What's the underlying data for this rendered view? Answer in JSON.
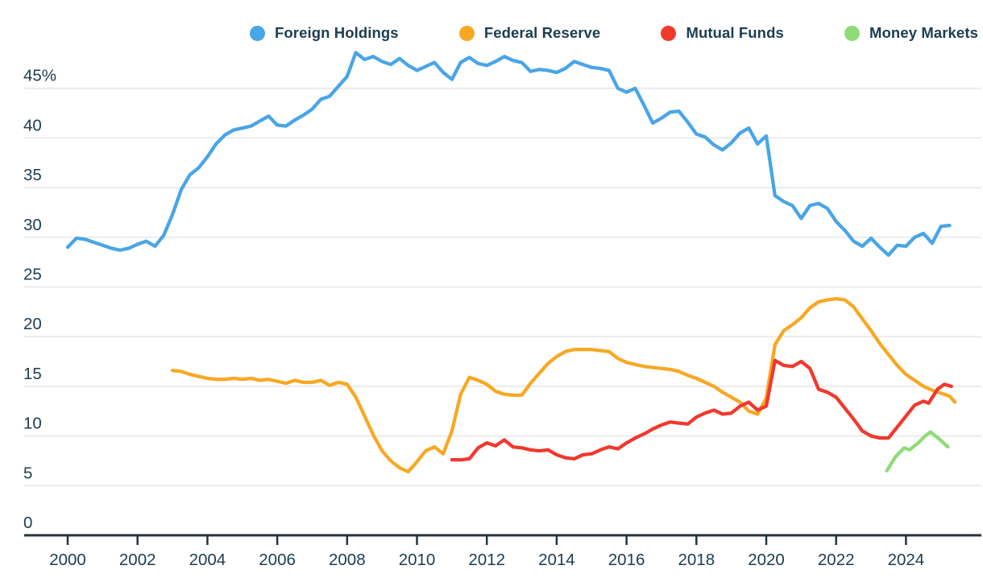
{
  "legend": {
    "items": [
      {
        "label": "Foreign Holdings",
        "color": "#49a5e6"
      },
      {
        "label": "Federal Reserve",
        "color": "#f7a823"
      },
      {
        "label": "Mutual Funds",
        "color": "#f0392e"
      },
      {
        "label": "Money Markets",
        "color": "#8fdb78"
      }
    ]
  },
  "chart_data": {
    "type": "line",
    "title": "",
    "unit": "percent share",
    "grid": "horizontal",
    "legend_position": "top",
    "x_axis": {
      "tick_years": [
        2000,
        2002,
        2004,
        2006,
        2008,
        2010,
        2012,
        2014,
        2016,
        2018,
        2020,
        2022,
        2024
      ],
      "range": [
        1998.8,
        2026.2
      ]
    },
    "y_axis": {
      "ticks": [
        {
          "value": 0,
          "label": "0"
        },
        {
          "value": 5,
          "label": "5"
        },
        {
          "value": 10,
          "label": "10"
        },
        {
          "value": 15,
          "label": "15"
        },
        {
          "value": 20,
          "label": "20"
        },
        {
          "value": 25,
          "label": "25"
        },
        {
          "value": 30,
          "label": "30"
        },
        {
          "value": 35,
          "label": "35"
        },
        {
          "value": 40,
          "label": "40"
        },
        {
          "value": 45,
          "label": "45%"
        }
      ],
      "range": [
        0,
        50
      ]
    },
    "series": [
      {
        "name": "Foreign Holdings",
        "color": "#49a5e6",
        "points": [
          [
            2000.0,
            29.0
          ],
          [
            2000.25,
            29.9
          ],
          [
            2000.5,
            29.8
          ],
          [
            2000.75,
            29.5
          ],
          [
            2001.0,
            29.2
          ],
          [
            2001.25,
            28.9
          ],
          [
            2001.5,
            28.7
          ],
          [
            2001.75,
            28.9
          ],
          [
            2002.0,
            29.3
          ],
          [
            2002.25,
            29.6
          ],
          [
            2002.5,
            29.1
          ],
          [
            2002.75,
            30.2
          ],
          [
            2003.0,
            32.3
          ],
          [
            2003.25,
            34.8
          ],
          [
            2003.5,
            36.3
          ],
          [
            2003.75,
            37.0
          ],
          [
            2004.0,
            38.1
          ],
          [
            2004.25,
            39.4
          ],
          [
            2004.5,
            40.3
          ],
          [
            2004.75,
            40.8
          ],
          [
            2005.0,
            41.0
          ],
          [
            2005.25,
            41.2
          ],
          [
            2005.5,
            41.7
          ],
          [
            2005.75,
            42.2
          ],
          [
            2006.0,
            41.3
          ],
          [
            2006.25,
            41.2
          ],
          [
            2006.5,
            41.8
          ],
          [
            2006.75,
            42.3
          ],
          [
            2007.0,
            42.9
          ],
          [
            2007.25,
            43.9
          ],
          [
            2007.5,
            44.2
          ],
          [
            2007.75,
            45.2
          ],
          [
            2008.0,
            46.2
          ],
          [
            2008.25,
            48.6
          ],
          [
            2008.5,
            47.9
          ],
          [
            2008.75,
            48.2
          ],
          [
            2009.0,
            47.7
          ],
          [
            2009.25,
            47.4
          ],
          [
            2009.5,
            48.0
          ],
          [
            2009.75,
            47.3
          ],
          [
            2010.0,
            46.8
          ],
          [
            2010.25,
            47.2
          ],
          [
            2010.5,
            47.6
          ],
          [
            2010.75,
            46.6
          ],
          [
            2011.0,
            45.9
          ],
          [
            2011.25,
            47.6
          ],
          [
            2011.5,
            48.1
          ],
          [
            2011.75,
            47.5
          ],
          [
            2012.0,
            47.3
          ],
          [
            2012.25,
            47.7
          ],
          [
            2012.5,
            48.2
          ],
          [
            2012.75,
            47.8
          ],
          [
            2013.0,
            47.6
          ],
          [
            2013.25,
            46.7
          ],
          [
            2013.5,
            46.9
          ],
          [
            2013.75,
            46.8
          ],
          [
            2014.0,
            46.6
          ],
          [
            2014.25,
            47.0
          ],
          [
            2014.5,
            47.7
          ],
          [
            2014.75,
            47.4
          ],
          [
            2015.0,
            47.1
          ],
          [
            2015.25,
            47.0
          ],
          [
            2015.5,
            46.8
          ],
          [
            2015.75,
            45.0
          ],
          [
            2016.0,
            44.6
          ],
          [
            2016.25,
            45.0
          ],
          [
            2016.5,
            43.3
          ],
          [
            2016.75,
            41.5
          ],
          [
            2017.0,
            42.0
          ],
          [
            2017.25,
            42.6
          ],
          [
            2017.5,
            42.7
          ],
          [
            2017.75,
            41.6
          ],
          [
            2018.0,
            40.4
          ],
          [
            2018.25,
            40.1
          ],
          [
            2018.5,
            39.3
          ],
          [
            2018.75,
            38.8
          ],
          [
            2019.0,
            39.5
          ],
          [
            2019.25,
            40.5
          ],
          [
            2019.5,
            41.0
          ],
          [
            2019.75,
            39.4
          ],
          [
            2020.0,
            40.2
          ],
          [
            2020.25,
            34.2
          ],
          [
            2020.5,
            33.6
          ],
          [
            2020.75,
            33.2
          ],
          [
            2021.0,
            31.9
          ],
          [
            2021.25,
            33.2
          ],
          [
            2021.5,
            33.4
          ],
          [
            2021.75,
            32.9
          ],
          [
            2022.0,
            31.6
          ],
          [
            2022.25,
            30.7
          ],
          [
            2022.5,
            29.6
          ],
          [
            2022.75,
            29.1
          ],
          [
            2023.0,
            29.9
          ],
          [
            2023.25,
            29.0
          ],
          [
            2023.5,
            28.2
          ],
          [
            2023.75,
            29.2
          ],
          [
            2024.0,
            29.1
          ],
          [
            2024.25,
            30.0
          ],
          [
            2024.5,
            30.4
          ],
          [
            2024.75,
            29.4
          ],
          [
            2025.0,
            31.1
          ],
          [
            2025.25,
            31.2
          ]
        ]
      },
      {
        "name": "Federal Reserve",
        "color": "#f7a823",
        "points": [
          [
            2003.0,
            16.6
          ],
          [
            2003.25,
            16.5
          ],
          [
            2003.5,
            16.2
          ],
          [
            2003.75,
            16.0
          ],
          [
            2004.0,
            15.8
          ],
          [
            2004.25,
            15.7
          ],
          [
            2004.5,
            15.7
          ],
          [
            2004.75,
            15.8
          ],
          [
            2005.0,
            15.7
          ],
          [
            2005.25,
            15.8
          ],
          [
            2005.5,
            15.6
          ],
          [
            2005.75,
            15.7
          ],
          [
            2006.0,
            15.5
          ],
          [
            2006.25,
            15.3
          ],
          [
            2006.5,
            15.6
          ],
          [
            2006.75,
            15.4
          ],
          [
            2007.0,
            15.4
          ],
          [
            2007.25,
            15.6
          ],
          [
            2007.5,
            15.1
          ],
          [
            2007.75,
            15.4
          ],
          [
            2008.0,
            15.2
          ],
          [
            2008.25,
            13.9
          ],
          [
            2008.5,
            12.0
          ],
          [
            2008.75,
            10.1
          ],
          [
            2009.0,
            8.5
          ],
          [
            2009.25,
            7.5
          ],
          [
            2009.5,
            6.8
          ],
          [
            2009.75,
            6.4
          ],
          [
            2010.0,
            7.4
          ],
          [
            2010.25,
            8.5
          ],
          [
            2010.5,
            8.9
          ],
          [
            2010.75,
            8.2
          ],
          [
            2011.0,
            10.5
          ],
          [
            2011.25,
            14.2
          ],
          [
            2011.5,
            15.9
          ],
          [
            2011.75,
            15.6
          ],
          [
            2012.0,
            15.2
          ],
          [
            2012.25,
            14.5
          ],
          [
            2012.5,
            14.2
          ],
          [
            2012.75,
            14.1
          ],
          [
            2013.0,
            14.1
          ],
          [
            2013.25,
            15.3
          ],
          [
            2013.5,
            16.3
          ],
          [
            2013.75,
            17.3
          ],
          [
            2014.0,
            18.0
          ],
          [
            2014.25,
            18.5
          ],
          [
            2014.5,
            18.7
          ],
          [
            2014.75,
            18.7
          ],
          [
            2015.0,
            18.7
          ],
          [
            2015.25,
            18.6
          ],
          [
            2015.5,
            18.5
          ],
          [
            2015.75,
            17.8
          ],
          [
            2016.0,
            17.4
          ],
          [
            2016.25,
            17.2
          ],
          [
            2016.5,
            17.0
          ],
          [
            2016.75,
            16.9
          ],
          [
            2017.0,
            16.8
          ],
          [
            2017.25,
            16.7
          ],
          [
            2017.5,
            16.5
          ],
          [
            2017.75,
            16.1
          ],
          [
            2018.0,
            15.8
          ],
          [
            2018.25,
            15.4
          ],
          [
            2018.5,
            15.0
          ],
          [
            2018.75,
            14.4
          ],
          [
            2019.0,
            13.9
          ],
          [
            2019.25,
            13.4
          ],
          [
            2019.5,
            12.5
          ],
          [
            2019.75,
            12.2
          ],
          [
            2020.0,
            13.8
          ],
          [
            2020.25,
            19.2
          ],
          [
            2020.5,
            20.6
          ],
          [
            2020.75,
            21.2
          ],
          [
            2021.0,
            21.9
          ],
          [
            2021.25,
            22.9
          ],
          [
            2021.5,
            23.5
          ],
          [
            2021.75,
            23.7
          ],
          [
            2022.0,
            23.8
          ],
          [
            2022.25,
            23.7
          ],
          [
            2022.5,
            23.0
          ],
          [
            2022.75,
            21.8
          ],
          [
            2023.0,
            20.6
          ],
          [
            2023.25,
            19.3
          ],
          [
            2023.5,
            18.2
          ],
          [
            2023.75,
            17.1
          ],
          [
            2024.0,
            16.2
          ],
          [
            2024.25,
            15.6
          ],
          [
            2024.5,
            15.0
          ],
          [
            2024.75,
            14.6
          ],
          [
            2025.0,
            14.3
          ],
          [
            2025.25,
            14.0
          ],
          [
            2025.4,
            13.4
          ]
        ]
      },
      {
        "name": "Mutual Funds",
        "color": "#f0392e",
        "points": [
          [
            2011.0,
            7.6
          ],
          [
            2011.25,
            7.6
          ],
          [
            2011.5,
            7.7
          ],
          [
            2011.75,
            8.8
          ],
          [
            2012.0,
            9.3
          ],
          [
            2012.25,
            9.0
          ],
          [
            2012.5,
            9.6
          ],
          [
            2012.75,
            8.9
          ],
          [
            2013.0,
            8.8
          ],
          [
            2013.25,
            8.6
          ],
          [
            2013.5,
            8.5
          ],
          [
            2013.75,
            8.6
          ],
          [
            2014.0,
            8.1
          ],
          [
            2014.25,
            7.8
          ],
          [
            2014.5,
            7.7
          ],
          [
            2014.75,
            8.1
          ],
          [
            2015.0,
            8.2
          ],
          [
            2015.25,
            8.6
          ],
          [
            2015.5,
            8.9
          ],
          [
            2015.75,
            8.7
          ],
          [
            2016.0,
            9.3
          ],
          [
            2016.25,
            9.8
          ],
          [
            2016.5,
            10.2
          ],
          [
            2016.75,
            10.7
          ],
          [
            2017.0,
            11.1
          ],
          [
            2017.25,
            11.4
          ],
          [
            2017.5,
            11.3
          ],
          [
            2017.75,
            11.2
          ],
          [
            2018.0,
            11.9
          ],
          [
            2018.25,
            12.3
          ],
          [
            2018.5,
            12.6
          ],
          [
            2018.75,
            12.2
          ],
          [
            2019.0,
            12.3
          ],
          [
            2019.25,
            13.0
          ],
          [
            2019.5,
            13.4
          ],
          [
            2019.75,
            12.6
          ],
          [
            2020.0,
            13.0
          ],
          [
            2020.25,
            17.6
          ],
          [
            2020.5,
            17.1
          ],
          [
            2020.75,
            17.0
          ],
          [
            2021.0,
            17.5
          ],
          [
            2021.25,
            16.8
          ],
          [
            2021.5,
            14.7
          ],
          [
            2021.75,
            14.4
          ],
          [
            2022.0,
            13.9
          ],
          [
            2022.25,
            12.8
          ],
          [
            2022.5,
            11.7
          ],
          [
            2022.75,
            10.5
          ],
          [
            2023.0,
            10.0
          ],
          [
            2023.25,
            9.8
          ],
          [
            2023.5,
            9.8
          ],
          [
            2023.75,
            10.9
          ],
          [
            2024.0,
            12.0
          ],
          [
            2024.25,
            13.1
          ],
          [
            2024.5,
            13.5
          ],
          [
            2024.65,
            13.3
          ],
          [
            2024.9,
            14.7
          ],
          [
            2025.1,
            15.2
          ],
          [
            2025.3,
            15.0
          ]
        ]
      },
      {
        "name": "Money Markets",
        "color": "#8fdb78",
        "points": [
          [
            2023.45,
            6.5
          ],
          [
            2023.7,
            7.9
          ],
          [
            2023.95,
            8.8
          ],
          [
            2024.1,
            8.6
          ],
          [
            2024.35,
            9.3
          ],
          [
            2024.55,
            10.0
          ],
          [
            2024.7,
            10.4
          ],
          [
            2024.95,
            9.7
          ],
          [
            2025.2,
            8.9
          ]
        ]
      }
    ],
    "colors": {
      "grid": "#ebebeb",
      "axis": "#25333c",
      "tick_text": "#1d3d4e",
      "background": "#ffffff"
    }
  }
}
